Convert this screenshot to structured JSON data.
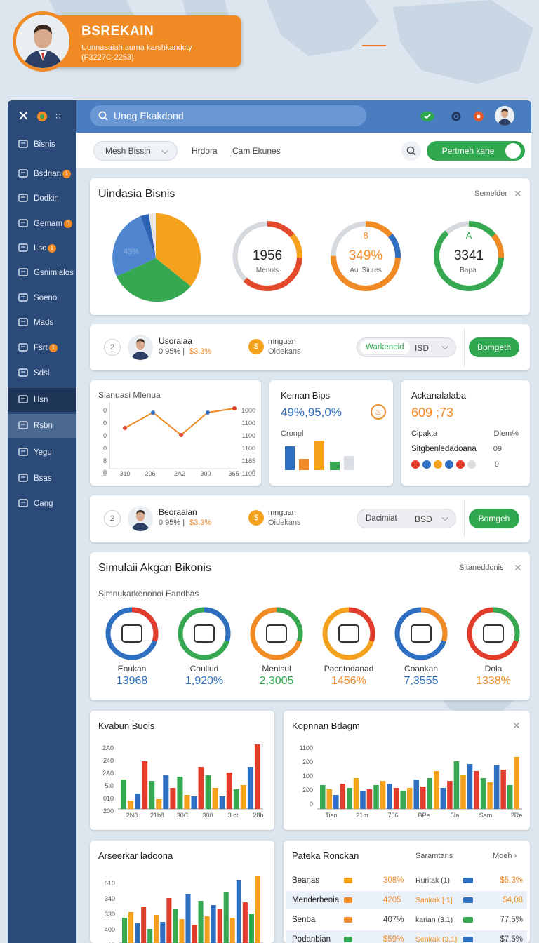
{
  "header": {
    "title": "BSREKAIN",
    "subtitle": "Uonnasaiah aurna karshkandcty",
    "id_line": "(F3227C-2253)"
  },
  "colors": {
    "sidebar": "#2b4a78",
    "topbar": "#4a7dc0",
    "accent_orange": "#f08a24",
    "green": "#2fa84f",
    "blue": "#2f6fc1"
  },
  "sidebar": {
    "items": [
      {
        "label": "Bisnis",
        "icon": "building-icon"
      },
      {
        "label": "Bsdrian",
        "icon": "card-icon",
        "badge": "1"
      },
      {
        "label": "Dodkin",
        "icon": "edit-icon"
      },
      {
        "label": "Gemam",
        "icon": "monitor-icon",
        "badge": "0"
      },
      {
        "label": "Lsc",
        "icon": "clock-icon",
        "badge": "1"
      },
      {
        "label": "Gsnimialos",
        "icon": "gear-icon"
      },
      {
        "label": "Soeno",
        "icon": "chart-icon"
      },
      {
        "label": "Mads",
        "icon": "document-icon"
      },
      {
        "label": "Fsrt",
        "icon": "megaphone-icon",
        "badge": "1"
      },
      {
        "label": "Sdsl",
        "icon": "grid-icon"
      },
      {
        "label": "Hsn",
        "icon": "home-icon"
      },
      {
        "label": "Rsbn",
        "icon": "box-icon"
      },
      {
        "label": "Yegu",
        "icon": "target-icon"
      },
      {
        "label": "Bsas",
        "icon": "pen-icon"
      },
      {
        "label": "Cang",
        "icon": "search-icon"
      }
    ]
  },
  "topbar": {
    "search_text": "Unog Ekakdond"
  },
  "filterbar": {
    "dropdown": "Mesh Bissin",
    "link1": "Hrdora",
    "link2": "Cam Ekunes",
    "action": "Pertmeh kane"
  },
  "overview": {
    "title": "Uindasia Bisnis",
    "corner": "Semelder",
    "pie_label": "43%",
    "gauges": [
      {
        "value": "1956",
        "label": "Menols",
        "fraction": 0.62
      },
      {
        "value": "349%",
        "label": "Aul Siures",
        "top": "8",
        "fraction": 0.75
      },
      {
        "value": "3341",
        "label": "Bapal",
        "top": "A",
        "fraction": 0.88
      }
    ]
  },
  "profile_rows": [
    {
      "name": "Usoraiaa",
      "stat_a": "0 95% |",
      "stat_b": "$3.3%",
      "num": "2",
      "mid_title": "mnguan",
      "mid_sub": "Oidekans",
      "toggle": "Warkeneid",
      "currency": "ISD",
      "button": "Bomgeth"
    },
    {
      "name": "Beoraaian",
      "stat_a": "0 95% |",
      "stat_b": "$3.3%",
      "num": "2",
      "mid_title": "mnguan",
      "mid_sub": "Oidekans",
      "toggle": "Dacimiat",
      "currency": "BSD",
      "button": "Bomgeh"
    }
  ],
  "line_panel": {
    "title": "Sianuasi Mlenua",
    "y_left": [
      "0",
      "0",
      "0",
      "0",
      "8",
      "0",
      "0"
    ],
    "y_right": [
      "1000",
      "1100",
      "1100",
      "1100",
      "1165",
      "1100",
      "0"
    ],
    "x_labels": [
      "310",
      "206",
      "2A2",
      "300",
      "365"
    ]
  },
  "metric_panel": {
    "title": "Keman Bips",
    "value": "49%,95,0%",
    "sub": "Cronpl"
  },
  "account_panel": {
    "title": "Ackanalalaba",
    "value": "609 ;73",
    "row1_label": "Cipakta",
    "row1_value": "Dlem%",
    "row2_label": "Sitgbenledadoana",
    "row2_value": "09",
    "row3_value": "9",
    "dots": [
      "#e23c2c",
      "#2f6fc1",
      "#f4a21d",
      "#2f6fc1",
      "#e23c2c",
      "#dddddd"
    ]
  },
  "simulasi": {
    "title": "Simulaii Akgan Bikonis",
    "corner": "Sitaneddonis",
    "subtitle": "Simnukarkenonoi Eandbas",
    "items": [
      {
        "label": "Enukan",
        "value": "13968",
        "value_color": "#2f6fc1",
        "icon": "hand-coins-icon"
      },
      {
        "label": "Coullud",
        "value": "1,920%",
        "value_color": "#2f6fc1",
        "icon": "money-bag-icon"
      },
      {
        "label": "Menisul",
        "value": "2,3005",
        "value_color": "#2fa84f",
        "icon": "bank-icon"
      },
      {
        "label": "Pacntodanad",
        "value": "1456%",
        "value_color": "#f08a24",
        "icon": "sun-gear-icon"
      },
      {
        "label": "Coankan",
        "value": "7,3555",
        "value_color": "#2f6fc1",
        "icon": "calculator-icon"
      },
      {
        "label": "Dola",
        "value": "1338%",
        "value_color": "#f08a24",
        "icon": "growth-chart-icon"
      }
    ]
  },
  "bar_panel_1": {
    "title": "Kvabun Buois",
    "y_labels": [
      "2A0",
      "240",
      "2A0",
      "5I0",
      "010",
      "200"
    ],
    "x_labels": [
      "2N8",
      "21b8",
      "30C",
      "300",
      "3 ct",
      "28b"
    ]
  },
  "bar_panel_2": {
    "title": "Kopnnan Bdagm",
    "y_labels": [
      "1100",
      "200",
      "100",
      "200",
      "0"
    ],
    "x_labels": [
      "Tien",
      "21m",
      "756",
      "BPe",
      "5Ia",
      "Sam",
      "2Ra"
    ]
  },
  "bar_panel_3": {
    "title": "Arseerkar ladoona",
    "y_labels": [
      "510",
      "340",
      "330",
      "400",
      "410"
    ]
  },
  "table_panel": {
    "title": "Pateka Ronckan",
    "col2": "Saramtans",
    "col3": "Moeh",
    "rows": [
      {
        "name": "Beanas",
        "pct": "308%",
        "sub": "Ruritak (1)",
        "amount": "$5.3%"
      },
      {
        "name": "Menderbenia",
        "pct": "4205",
        "sub": "Sankak [ 1]",
        "amount": "$4,08"
      },
      {
        "name": "Senba",
        "pct": "407%",
        "sub": "karian (3.1)",
        "amount": "77.5%"
      },
      {
        "name": "Podanbian",
        "pct": "$59%",
        "sub": "Senkak (3,1)",
        "amount": "$7.5%"
      }
    ]
  }
}
